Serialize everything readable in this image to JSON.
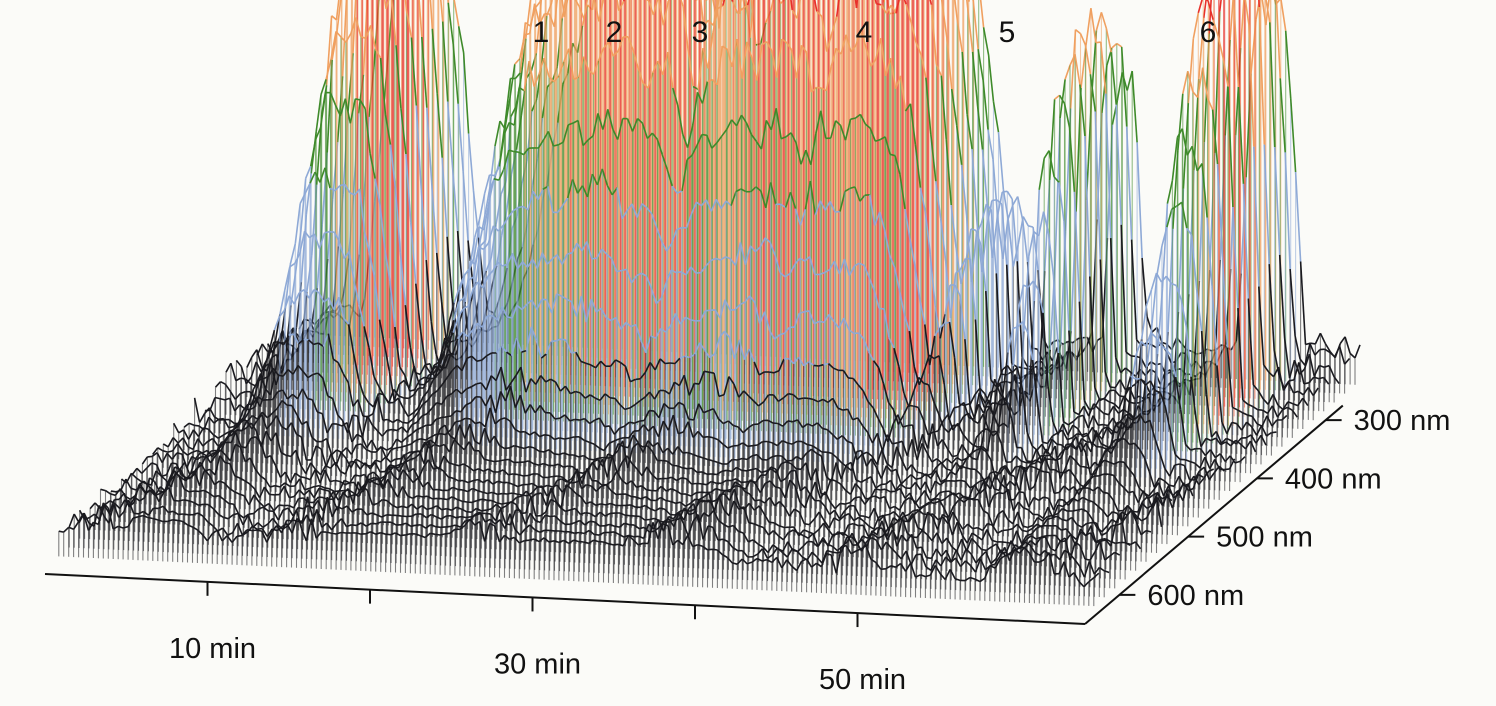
{
  "chart_data": {
    "type": "3d-surface",
    "x_axis": {
      "unit": "min",
      "ticks": [
        10,
        30,
        50
      ],
      "tick_labels": [
        "10 min",
        "30 min",
        "50 min"
      ],
      "range": [
        0,
        64
      ]
    },
    "y_axis": {
      "unit": "nm",
      "ticks": [
        300,
        400,
        500,
        600
      ],
      "tick_labels": [
        "300 nm",
        "400 nm",
        "500 nm",
        "600 nm"
      ],
      "range": [
        250,
        650
      ]
    },
    "peak_labels": [
      "1",
      "2",
      "3",
      "4",
      "5",
      "6"
    ],
    "peaks": [
      {
        "label": "",
        "t_min": 6.5,
        "t_width": 3.5,
        "height": 1.0,
        "lambda_nm": 300
      },
      {
        "label": "1",
        "t_min": 21.0,
        "t_width": 8.5,
        "height": 0.95,
        "lambda_nm": 300
      },
      {
        "label": "2",
        "t_min": 25.5,
        "t_width": 2.5,
        "height": 0.9,
        "lambda_nm": 300
      },
      {
        "label": "3",
        "t_min": 31.5,
        "t_width": 7.0,
        "height": 0.98,
        "lambda_nm": 300
      },
      {
        "label": "4",
        "t_min": 38.0,
        "t_width": 5.0,
        "height": 1.0,
        "lambda_nm": 300
      },
      {
        "label": "",
        "t_min": 43.5,
        "t_width": 1.0,
        "height": 0.38,
        "lambda_nm": 300
      },
      {
        "label": "5",
        "t_min": 49.5,
        "t_width": 1.3,
        "height": 0.72,
        "lambda_nm": 300
      },
      {
        "label": "6",
        "t_min": 58.5,
        "t_width": 2.0,
        "height": 0.95,
        "lambda_nm": 300
      }
    ],
    "colors": [
      "#1a1a1f",
      "#8ea9d6",
      "#3e8a2a",
      "#f0a060",
      "#e8302a"
    ],
    "color_scale": [
      "black",
      "blue",
      "green",
      "orange",
      "red"
    ],
    "grid": false,
    "legend": "none"
  }
}
